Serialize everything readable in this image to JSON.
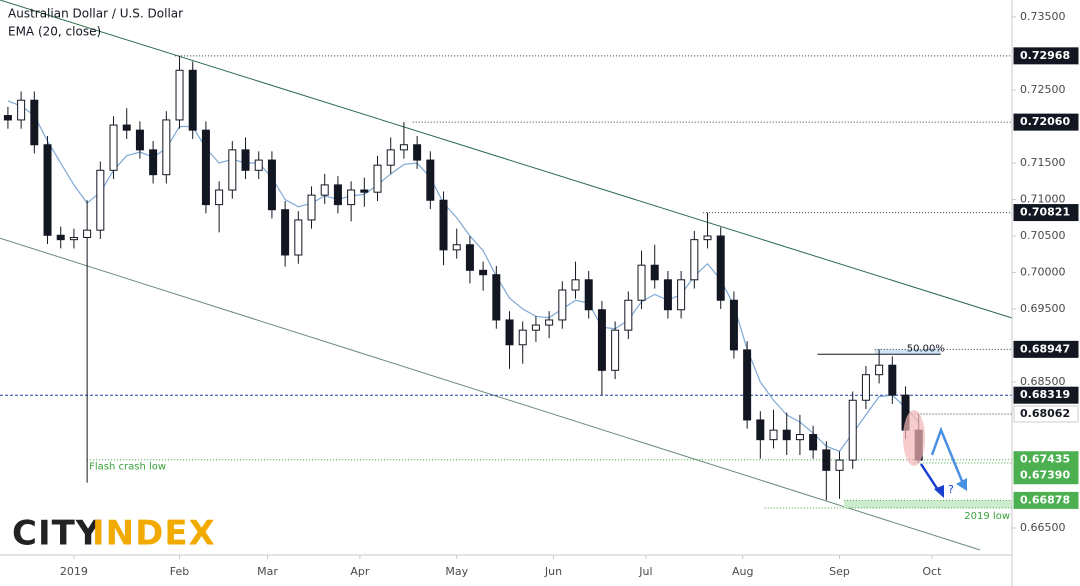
{
  "chart_data": {
    "type": "candlestick",
    "title": "Australian Dollar / U.S. Dollar",
    "x": [
      0,
      3,
      6,
      9,
      12,
      15,
      18,
      21,
      24,
      27,
      30,
      33,
      36,
      39,
      42,
      45,
      48,
      51,
      54,
      57,
      60,
      63,
      66,
      69,
      72,
      75,
      78,
      81,
      84,
      87,
      90,
      93,
      96,
      99,
      102,
      105,
      108,
      111,
      114,
      117,
      120,
      123,
      126,
      129,
      132,
      135,
      138,
      141,
      144,
      147,
      150,
      153,
      156,
      159,
      162,
      165,
      168,
      171,
      174,
      177,
      180,
      183,
      186,
      189,
      192,
      195,
      198,
      201,
      204,
      207
    ],
    "ohlc": {
      "open": [
        0.7215,
        0.7209,
        0.7236,
        0.7175,
        0.7051,
        0.7045,
        0.7048,
        0.7058,
        0.714,
        0.7202,
        0.7195,
        0.7168,
        0.7134,
        0.7209,
        0.7277,
        0.7195,
        0.7093,
        0.7113,
        0.7168,
        0.714,
        0.7154,
        0.7086,
        0.7024,
        0.7072,
        0.7106,
        0.712,
        0.7093,
        0.7113,
        0.711,
        0.7147,
        0.7168,
        0.7175,
        0.7154,
        0.7099,
        0.7031,
        0.7038,
        0.7003,
        0.6997,
        0.6935,
        0.6901,
        0.6921,
        0.6928,
        0.6935,
        0.6976,
        0.699,
        0.6949,
        0.6866,
        0.6921,
        0.6962,
        0.701,
        0.699,
        0.6949,
        0.699,
        0.7045,
        0.705,
        0.6962,
        0.6894,
        0.6798,
        0.6771,
        0.6784,
        0.6771,
        0.6778,
        0.6757,
        0.6729,
        0.6743,
        0.6825,
        0.686,
        0.6873,
        0.6832,
        0.6784
      ],
      "high": [
        0.7227,
        0.7248,
        0.7248,
        0.7187,
        0.7063,
        0.706,
        0.7099,
        0.7152,
        0.7214,
        0.7225,
        0.7207,
        0.718,
        0.7221,
        0.72968,
        0.7289,
        0.7207,
        0.7125,
        0.718,
        0.7185,
        0.7166,
        0.7166,
        0.7098,
        0.7084,
        0.7118,
        0.7135,
        0.7132,
        0.7125,
        0.713,
        0.716,
        0.7185,
        0.7206,
        0.7187,
        0.7166,
        0.7111,
        0.706,
        0.705,
        0.7015,
        0.7009,
        0.6947,
        0.6933,
        0.694,
        0.6947,
        0.6988,
        0.7015,
        0.7002,
        0.6961,
        0.6933,
        0.6974,
        0.703,
        0.7038,
        0.7002,
        0.7002,
        0.7057,
        0.70821,
        0.7062,
        0.6974,
        0.6906,
        0.681,
        0.6812,
        0.6808,
        0.6805,
        0.679,
        0.6769,
        0.6755,
        0.6837,
        0.6872,
        0.68947,
        0.6885,
        0.6844,
        0.6806
      ],
      "low": [
        0.7197,
        0.7197,
        0.7163,
        0.7039,
        0.7033,
        0.7033,
        0.6712,
        0.7046,
        0.7128,
        0.7183,
        0.7156,
        0.7122,
        0.7122,
        0.7197,
        0.7183,
        0.7081,
        0.7055,
        0.7101,
        0.7128,
        0.7128,
        0.7074,
        0.7008,
        0.7012,
        0.706,
        0.7094,
        0.7081,
        0.707,
        0.709,
        0.7098,
        0.7135,
        0.7156,
        0.7142,
        0.7087,
        0.701,
        0.7019,
        0.6985,
        0.6975,
        0.6923,
        0.6868,
        0.6875,
        0.6905,
        0.691,
        0.6923,
        0.6964,
        0.6937,
        0.6832,
        0.6854,
        0.6909,
        0.695,
        0.6978,
        0.6937,
        0.6937,
        0.6978,
        0.7033,
        0.695,
        0.6882,
        0.6786,
        0.6745,
        0.6759,
        0.675,
        0.675,
        0.6745,
        0.6688,
        0.669,
        0.6731,
        0.6813,
        0.6848,
        0.682,
        0.6772,
        0.6739
      ],
      "close": [
        0.7209,
        0.7236,
        0.7175,
        0.7051,
        0.7045,
        0.7048,
        0.7058,
        0.714,
        0.7202,
        0.7195,
        0.7168,
        0.7134,
        0.7209,
        0.7277,
        0.7195,
        0.7093,
        0.7113,
        0.7168,
        0.714,
        0.7154,
        0.7086,
        0.7024,
        0.7072,
        0.7106,
        0.712,
        0.7093,
        0.7113,
        0.711,
        0.7147,
        0.7168,
        0.7175,
        0.7154,
        0.7099,
        0.7031,
        0.7038,
        0.7003,
        0.6997,
        0.6935,
        0.6901,
        0.6921,
        0.6928,
        0.6935,
        0.6976,
        0.699,
        0.6949,
        0.6866,
        0.6921,
        0.6962,
        0.701,
        0.699,
        0.6949,
        0.699,
        0.7045,
        0.705,
        0.6962,
        0.6894,
        0.6798,
        0.6771,
        0.6784,
        0.6771,
        0.6778,
        0.6757,
        0.6729,
        0.6743,
        0.6825,
        0.686,
        0.6873,
        0.6832,
        0.6784,
        0.6743
      ],
      "up_color": "#ffffff",
      "down_color": "#131722",
      "wick_color": "#131722"
    },
    "series": [
      {
        "name": "EMA (20, close)",
        "color": "#7fa9d6",
        "values": [
          0.7235,
          0.7228,
          0.7215,
          0.718,
          0.715,
          0.712,
          0.7095,
          0.711,
          0.714,
          0.716,
          0.7165,
          0.7158,
          0.717,
          0.72,
          0.72,
          0.717,
          0.715,
          0.7155,
          0.715,
          0.715,
          0.713,
          0.71,
          0.709,
          0.7095,
          0.7105,
          0.71,
          0.7105,
          0.7107,
          0.712,
          0.7135,
          0.7148,
          0.715,
          0.713,
          0.7095,
          0.7075,
          0.705,
          0.703,
          0.6995,
          0.6965,
          0.695,
          0.694,
          0.6938,
          0.695,
          0.6962,
          0.6958,
          0.6925,
          0.6923,
          0.6935,
          0.696,
          0.697,
          0.6962,
          0.697,
          0.6995,
          0.7012,
          0.699,
          0.6955,
          0.6895,
          0.685,
          0.6825,
          0.6805,
          0.6795,
          0.678,
          0.6762,
          0.6755,
          0.678,
          0.6805,
          0.683,
          0.6832,
          0.6815,
          0.6795
        ]
      }
    ],
    "xlim": [
      -1.8,
      228.2
    ],
    "ylim": [
      0.6613,
      0.73733
    ],
    "xticks": [
      {
        "value": 15,
        "label": "2019"
      },
      {
        "value": 39,
        "label": "Feb"
      },
      {
        "value": 59,
        "label": "Mar"
      },
      {
        "value": 80,
        "label": "Apr"
      },
      {
        "value": 102,
        "label": "May"
      },
      {
        "value": 124,
        "label": "Jun"
      },
      {
        "value": 145,
        "label": "Jul"
      },
      {
        "value": 167,
        "label": "Aug"
      },
      {
        "value": 189,
        "label": "Sep"
      },
      {
        "value": 210,
        "label": "Oct"
      }
    ],
    "yticks": [
      {
        "value": 0.735,
        "label": "0.73500"
      },
      {
        "value": 0.725,
        "label": "0.72500"
      },
      {
        "value": 0.715,
        "label": "0.71500"
      },
      {
        "value": 0.71,
        "label": "0.71000"
      },
      {
        "value": 0.705,
        "label": "0.70500"
      },
      {
        "value": 0.7,
        "label": "0.70000"
      },
      {
        "value": 0.695,
        "label": "0.69500"
      },
      {
        "value": 0.685,
        "label": "0.68500"
      },
      {
        "value": 0.665,
        "label": "0.66500"
      }
    ],
    "grid": false,
    "levels": {
      "values": [
        0.72968,
        0.7206,
        0.70821,
        0.68947,
        0.68319,
        0.68062,
        0.67435,
        0.6739,
        0.66878
      ],
      "value_labels": [
        "0.72968",
        "0.72060",
        "0.70821",
        "0.68947",
        "0.68319",
        "0.68062",
        "0.67435",
        "0.67390",
        "0.66878"
      ],
      "start": [
        38,
        92,
        158,
        197,
        -1.8,
        204,
        18,
        206,
        190
      ],
      "line_colors": [
        "#2a3550",
        "#2a3550",
        "#2a3550",
        "#2a3550",
        "#1e3f9e",
        "#2a3550",
        "#3aa13a",
        "#3aa13a",
        "#3aa13a"
      ],
      "box_colors": [
        "#131722",
        "#131722",
        "#131722",
        "#131722",
        "#131722",
        "#ffffff",
        "#4caf50",
        "#4caf50",
        "#4caf50"
      ],
      "text_colors": [
        "#ffffff",
        "#ffffff",
        "#ffffff",
        "#ffffff",
        "#ffffff",
        "#131722",
        "#ffffff",
        "#ffffff",
        "#ffffff"
      ]
    },
    "zone_low": 0.66774,
    "channels": [
      {
        "x": [
          -1.8,
          228.2
        ],
        "y": [
          0.73733,
          0.69377
        ],
        "color": "#2e6b4a"
      },
      {
        "x": [
          -1.8,
          220.9
        ],
        "y": [
          0.7047,
          0.662
        ],
        "color": "#6a8c7a"
      }
    ],
    "fib": {
      "value": 0.6888,
      "label": "50.00%",
      "x": [
        184,
        212
      ]
    },
    "annotations": {
      "flash_crash": "Flash crash low",
      "low_2019": "2019 low",
      "question": "?"
    },
    "logo": [
      "CITY",
      "INDEX"
    ]
  }
}
